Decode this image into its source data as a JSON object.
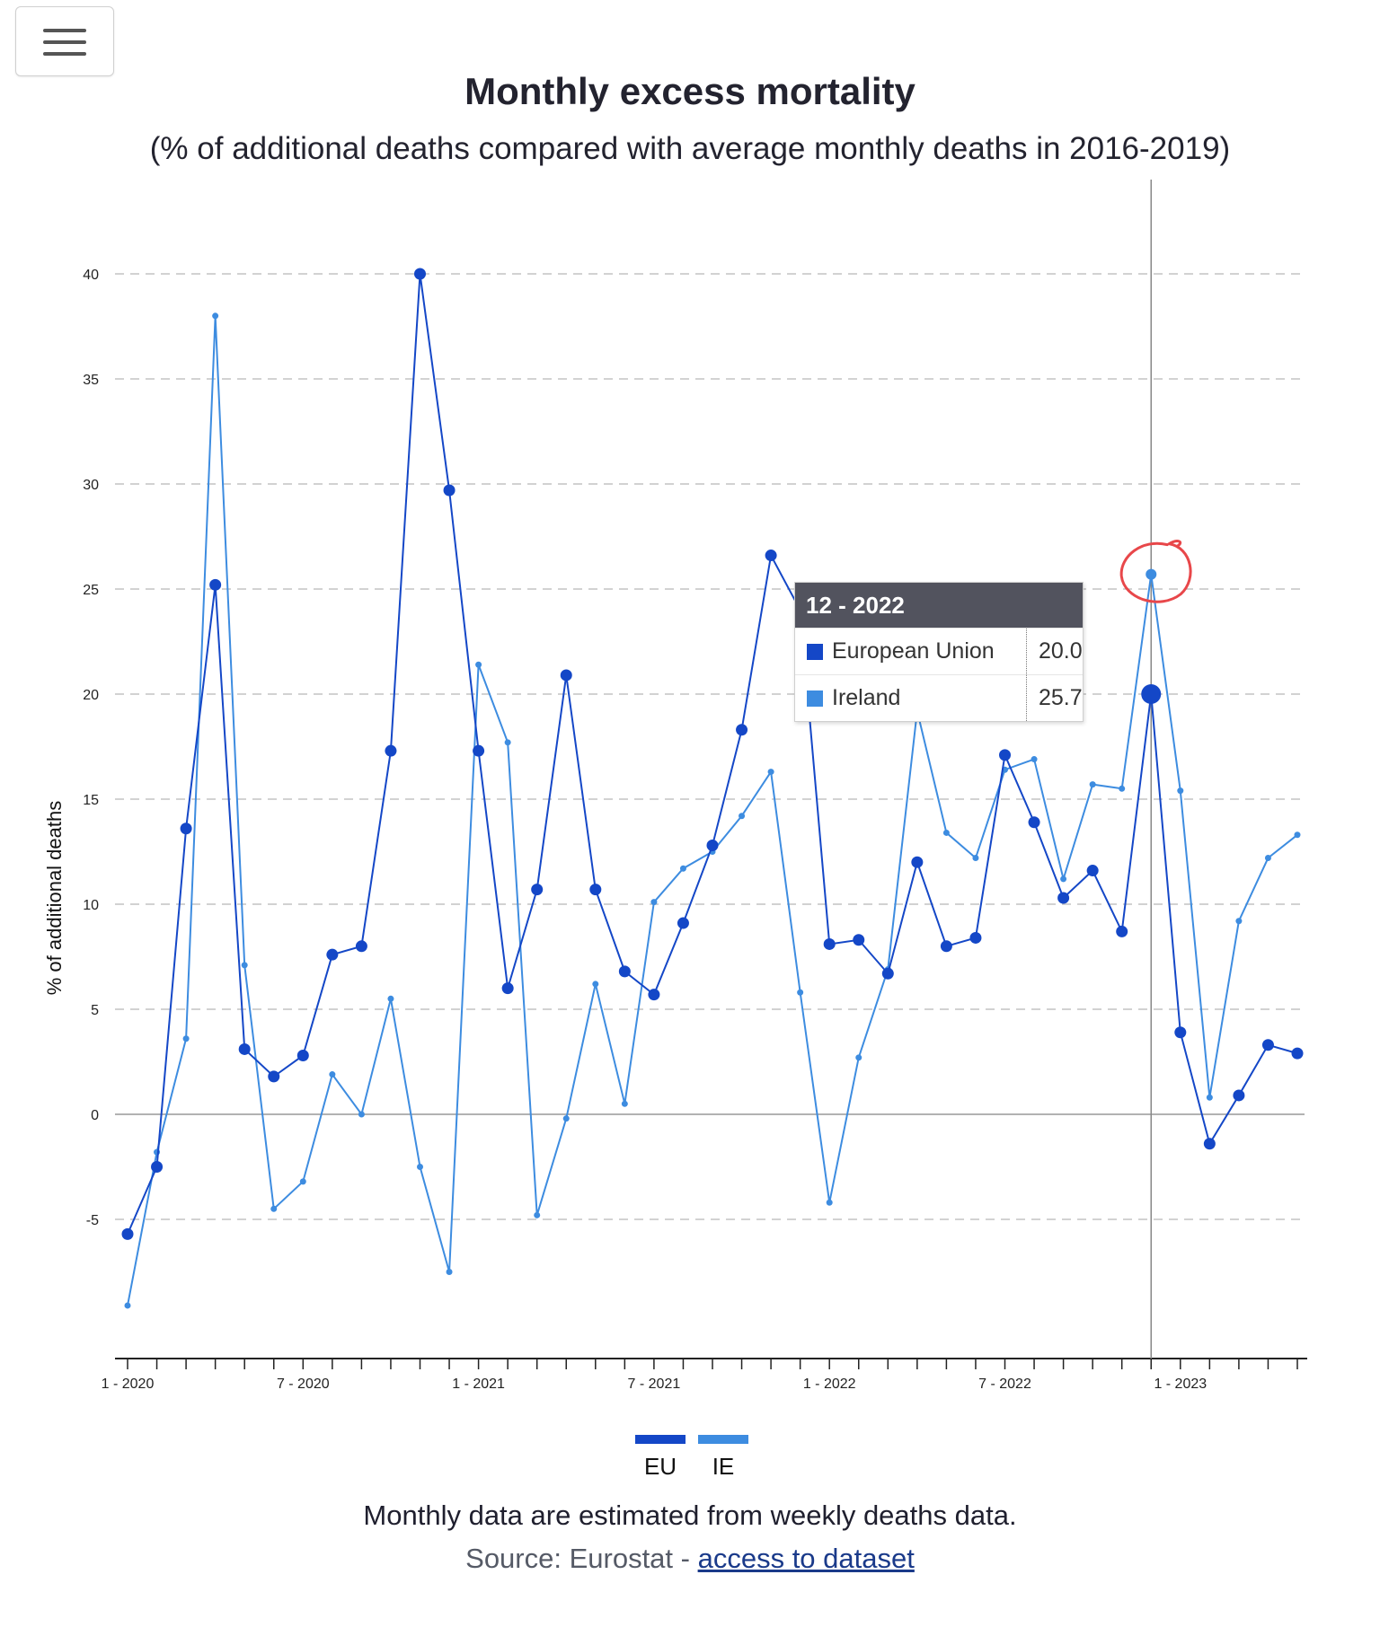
{
  "menu": {
    "icon": "hamburger-menu-icon"
  },
  "chart_data": {
    "type": "line",
    "title": "Monthly excess mortality",
    "subtitle": "(% of additional deaths compared with average monthly deaths in 2016-2019)",
    "ylabel": "% of additional deaths",
    "xlabel": "",
    "ylim": [
      -10,
      40
    ],
    "yticks": [
      -5,
      0,
      5,
      10,
      15,
      20,
      25,
      30,
      35,
      40
    ],
    "grid": true,
    "x_months": [
      "1-2020",
      "2-2020",
      "3-2020",
      "4-2020",
      "5-2020",
      "6-2020",
      "7-2020",
      "8-2020",
      "9-2020",
      "10-2020",
      "11-2020",
      "12-2020",
      "1-2021",
      "2-2021",
      "3-2021",
      "4-2021",
      "5-2021",
      "6-2021",
      "7-2021",
      "8-2021",
      "9-2021",
      "10-2021",
      "11-2021",
      "12-2021",
      "1-2022",
      "2-2022",
      "3-2022",
      "4-2022",
      "5-2022",
      "6-2022",
      "7-2022",
      "8-2022",
      "9-2022",
      "10-2022",
      "11-2022",
      "12-2022",
      "1-2023",
      "2-2023",
      "3-2023",
      "4-2023",
      "5-2023"
    ],
    "x_tick_labels": [
      {
        "index": 0,
        "label": "1 - 2020"
      },
      {
        "index": 6,
        "label": "7 - 2020"
      },
      {
        "index": 12,
        "label": "1 - 2021"
      },
      {
        "index": 18,
        "label": "7 - 2021"
      },
      {
        "index": 24,
        "label": "1 - 2022"
      },
      {
        "index": 30,
        "label": "7 - 2022"
      },
      {
        "index": 36,
        "label": "1 - 2023"
      }
    ],
    "series": [
      {
        "name": "EU",
        "color": "#1447c7",
        "values": [
          -5.7,
          -2.5,
          13.6,
          25.2,
          3.1,
          1.8,
          2.8,
          7.6,
          8.0,
          17.3,
          40.0,
          29.7,
          17.3,
          6.0,
          10.7,
          20.9,
          10.7,
          6.8,
          5.7,
          9.1,
          12.8,
          18.3,
          26.6,
          24.0,
          8.1,
          8.3,
          6.7,
          12.0,
          8.0,
          8.4,
          17.1,
          13.9,
          10.3,
          11.6,
          8.7,
          20.0,
          3.9,
          -1.4,
          0.9,
          3.3,
          2.9
        ]
      },
      {
        "name": "IE",
        "color": "#3d8ce0",
        "values": [
          -9.1,
          -1.8,
          3.6,
          38.0,
          7.1,
          -4.5,
          -3.2,
          1.9,
          0.0,
          5.5,
          -2.5,
          -7.5,
          21.4,
          17.7,
          -4.8,
          -0.2,
          6.2,
          0.5,
          10.1,
          11.7,
          12.5,
          14.2,
          16.3,
          5.8,
          -4.2,
          2.7,
          6.9,
          19.2,
          13.4,
          12.2,
          16.4,
          16.9,
          11.2,
          15.7,
          15.5,
          25.7,
          15.4,
          0.8,
          9.2,
          12.2,
          13.3
        ]
      }
    ],
    "highlight_index": 35,
    "legend": [
      {
        "label": "EU",
        "color": "#1447c7"
      },
      {
        "label": "IE",
        "color": "#3d8ce0"
      }
    ],
    "legend_position": "bottom"
  },
  "tooltip": {
    "header": "12 - 2022",
    "rows": [
      {
        "name": "European Union",
        "value": "20.0",
        "color": "#1447c7"
      },
      {
        "name": "Ireland",
        "value": "25.7",
        "color": "#3d8ce0"
      }
    ]
  },
  "annotation": {
    "color": "#e8474a"
  },
  "footer": {
    "note": "Monthly data are estimated from weekly deaths data.",
    "source_prefix": "Source: Eurostat - ",
    "source_link": "access to dataset"
  }
}
